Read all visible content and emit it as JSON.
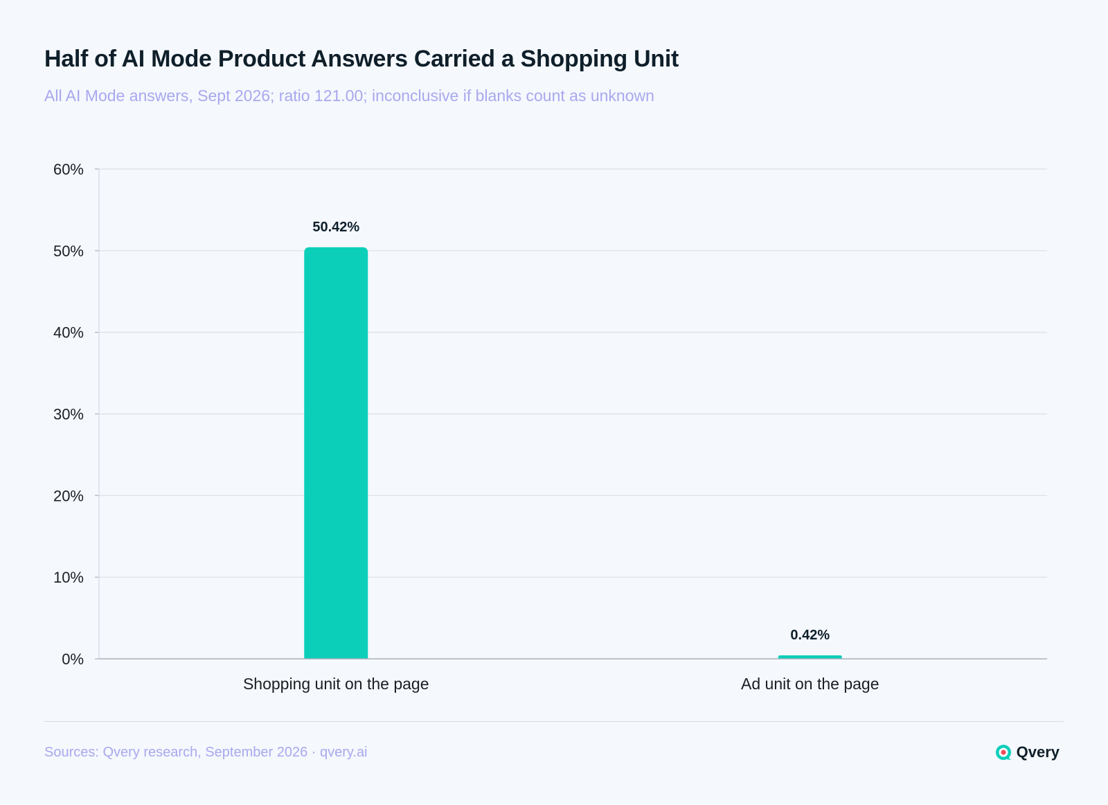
{
  "title": "Half of AI Mode Product Answers Carried a Shopping Unit",
  "subtitle": "All AI Mode answers, Sept 2026; ratio 121.00; inconclusive if blanks count as unknown",
  "footer": {
    "source": "Sources: Qvery research, September 2026 · qvery.ai",
    "brand": "Qvery",
    "logo_icon": "qvery-logo-icon"
  },
  "colors": {
    "bar": "#0ccfba",
    "gridline": "#d9dee8",
    "axis": "#a8afba",
    "tick_text": "#1a1f24",
    "label_text": "#0f1f2a"
  },
  "chart_data": {
    "type": "bar",
    "title": "Half of AI Mode Product Answers Carried a Shopping Unit",
    "subtitle": "All AI Mode answers, Sept 2026; ratio 121.00; inconclusive if blanks count as unknown",
    "categories": [
      "Shopping unit on the page",
      "Ad unit on the page"
    ],
    "values": [
      50.42,
      0.42
    ],
    "data_labels": [
      "50.42%",
      "0.42%"
    ],
    "xlabel": "",
    "ylabel": "",
    "ylim": [
      0,
      60
    ],
    "yticks": [
      0,
      10,
      20,
      30,
      40,
      50,
      60
    ],
    "ytick_labels": [
      "0%",
      "10%",
      "20%",
      "30%",
      "40%",
      "50%",
      "60%"
    ],
    "grid": true,
    "legend": "none"
  }
}
